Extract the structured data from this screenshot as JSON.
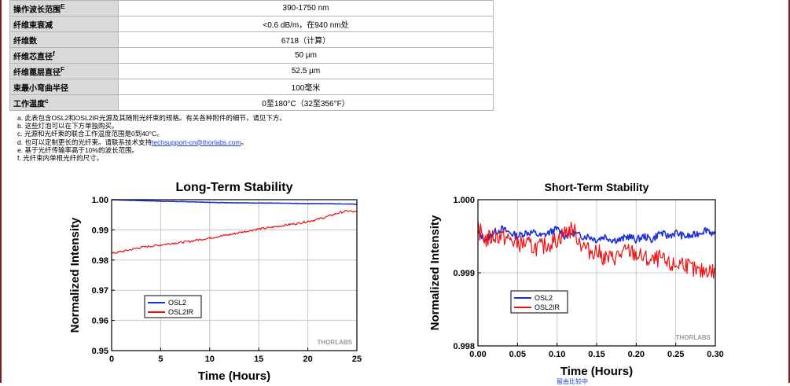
{
  "spec_table": [
    {
      "label": "操作波长范围",
      "sup": "E",
      "value": "390-1750 nm"
    },
    {
      "label": "纤维束衰减",
      "sup": "",
      "value": "<0.6 dB/m，在940 nm处"
    },
    {
      "label": "纤维数",
      "sup": "",
      "value": "6718（计算）"
    },
    {
      "label": "纤维芯直径",
      "sup": "f",
      "value": "50 µm"
    },
    {
      "label": "纤维蓖层直径",
      "sup": "F",
      "value": "52.5 µm"
    },
    {
      "label": "束最小弯曲半径",
      "sup": "",
      "value": "100毫米"
    },
    {
      "label": "工作温度",
      "sup": "c",
      "value": "0至180°C（32至356°F）"
    }
  ],
  "notes": {
    "a": "a. 此表包含OSL2和OSL2IR光源及其随附光纤束的规格。有关各种附件的细节，请见下方。",
    "b": "b. 这些灯泡可以在下方单独购买。",
    "c": "c. 光源和光纤束的联合工作温度范围是0到40°C。",
    "d_before": "d. 也可以定制更长的光纤束。请联系技术支持",
    "d_link": "techsupport-cn@thorlabs.com",
    "d_after": "。",
    "e": "e. 基于光纤传输率高于10%的波长范围。",
    "f": "f. 光纤束内单根光纤的尺寸。"
  },
  "stray_text": "留由比较中",
  "chart_data": [
    {
      "type": "line",
      "title": "Long-Term Stability",
      "xlabel": "Time (Hours)",
      "ylabel": "Normalized Intensity",
      "xlim": [
        0,
        25
      ],
      "ylim": [
        0.95,
        1.0
      ],
      "xticks": [
        0,
        5,
        10,
        15,
        20,
        25
      ],
      "xtick_labels": [
        "0",
        "5",
        "10",
        "15",
        "20",
        "25"
      ],
      "yticks": [
        0.95,
        0.96,
        0.97,
        0.98,
        0.99,
        1.0
      ],
      "ytick_labels": [
        "0.95",
        "0.96",
        "0.97",
        "0.98",
        "0.99",
        "1.00"
      ],
      "grid": true,
      "legend_placement": "lower-left",
      "watermark": "THORLABS",
      "series": [
        {
          "name": "OSL2",
          "color": "#1f2fd6",
          "x": [
            0,
            2,
            5,
            8,
            10,
            12,
            15,
            18,
            20,
            22,
            25
          ],
          "y": [
            1.0,
            0.9998,
            0.9995,
            0.9993,
            0.9991,
            0.999,
            0.9989,
            0.9988,
            0.9987,
            0.9987,
            0.9985
          ]
        },
        {
          "name": "OSL2IR",
          "color": "#ee1111",
          "x": [
            0,
            1,
            2,
            3,
            4,
            5,
            6,
            7,
            8,
            9,
            10,
            11,
            12,
            13,
            14,
            15,
            16,
            17,
            18,
            19,
            20,
            21,
            22,
            23,
            24,
            24.5,
            25
          ],
          "y": [
            0.9822,
            0.9828,
            0.9835,
            0.9842,
            0.9846,
            0.985,
            0.9855,
            0.9858,
            0.9862,
            0.9868,
            0.9873,
            0.9879,
            0.9884,
            0.9891,
            0.9897,
            0.9903,
            0.9907,
            0.9912,
            0.9917,
            0.9922,
            0.9928,
            0.9935,
            0.9944,
            0.9955,
            0.9963,
            0.9961,
            0.9958
          ]
        }
      ]
    },
    {
      "type": "line",
      "title": "Short-Term Stability",
      "xlabel": "Time (Hours)",
      "ylabel": "Normalized Intensity",
      "xlim": [
        0,
        0.3
      ],
      "ylim": [
        0.998,
        1.0
      ],
      "xticks": [
        0,
        0.05,
        0.1,
        0.15,
        0.2,
        0.25,
        0.3
      ],
      "xtick_labels": [
        "0.00",
        "0.05",
        "0.10",
        "0.15",
        "0.20",
        "0.25",
        "0.30"
      ],
      "yticks": [
        0.998,
        0.999,
        1.0
      ],
      "ytick_labels": [
        "0.998",
        "0.999",
        "1.000"
      ],
      "grid": true,
      "legend_placement": "lower-left",
      "watermark": "THORLABS",
      "series": [
        {
          "name": "OSL2",
          "color": "#1f2fd6",
          "x": [
            0,
            0.01,
            0.02,
            0.03,
            0.04,
            0.05,
            0.06,
            0.07,
            0.08,
            0.09,
            0.1,
            0.11,
            0.12,
            0.13,
            0.14,
            0.15,
            0.16,
            0.17,
            0.18,
            0.19,
            0.2,
            0.21,
            0.22,
            0.23,
            0.24,
            0.25,
            0.26,
            0.27,
            0.28,
            0.29,
            0.3
          ],
          "y": [
            0.99955,
            0.99945,
            0.99955,
            0.9996,
            0.99955,
            0.9995,
            0.99955,
            0.99955,
            0.9995,
            0.99955,
            0.9996,
            0.9995,
            0.99955,
            0.9995,
            0.9995,
            0.99945,
            0.9995,
            0.99945,
            0.99945,
            0.9995,
            0.99945,
            0.9995,
            0.99945,
            0.99955,
            0.9995,
            0.99955,
            0.9995,
            0.9995,
            0.99955,
            0.9996,
            0.9995
          ]
        },
        {
          "name": "OSL2IR",
          "color": "#ee1111",
          "x": [
            0,
            0.01,
            0.02,
            0.03,
            0.04,
            0.05,
            0.06,
            0.07,
            0.08,
            0.09,
            0.1,
            0.11,
            0.12,
            0.13,
            0.14,
            0.15,
            0.16,
            0.17,
            0.18,
            0.19,
            0.2,
            0.21,
            0.22,
            0.23,
            0.24,
            0.25,
            0.26,
            0.27,
            0.28,
            0.29,
            0.3
          ],
          "y": [
            0.9996,
            0.99945,
            0.9995,
            0.9995,
            0.99945,
            0.9994,
            0.9994,
            0.99935,
            0.99935,
            0.9994,
            0.99945,
            0.99955,
            0.9996,
            0.9994,
            0.9993,
            0.9993,
            0.9992,
            0.9992,
            0.99925,
            0.9993,
            0.99925,
            0.9992,
            0.99915,
            0.9992,
            0.9991,
            0.9991,
            0.99915,
            0.99905,
            0.999,
            0.99905,
            0.999
          ]
        }
      ]
    }
  ]
}
